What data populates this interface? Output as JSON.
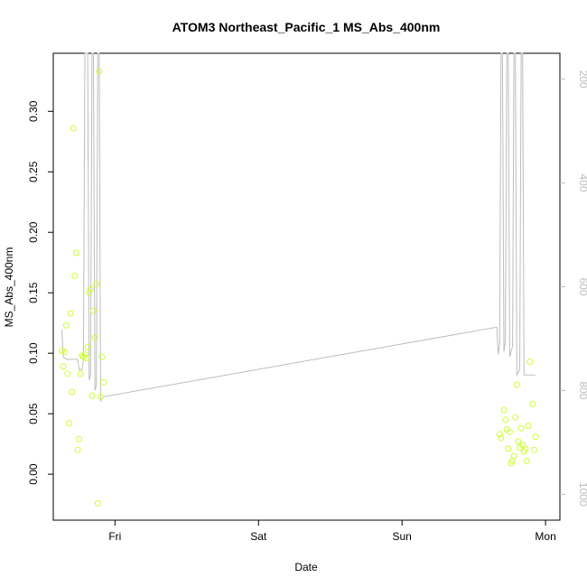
{
  "chart_data": {
    "type": "scatter",
    "title": "ATOM3 Northeast_Pacific_1 MS_Abs_400nm",
    "xlabel": "Date",
    "ylabel": "MS_Abs_400nm",
    "x_ticks": [
      "Fri",
      "Sat",
      "Sun",
      "Mon"
    ],
    "x_tick_days": [
      1,
      2,
      3,
      4
    ],
    "xlim_days": [
      0.57,
      4.1
    ],
    "ylim": [
      -0.038,
      0.348
    ],
    "y_ticks": [
      0.0,
      0.05,
      0.1,
      0.15,
      0.2,
      0.25,
      0.3
    ],
    "y_tick_labels": [
      "0.00",
      "0.05",
      "0.10",
      "0.15",
      "0.20",
      "0.25",
      "0.30"
    ],
    "right_axis": {
      "label": "",
      "ticks": [
        200,
        400,
        600,
        800,
        1000
      ],
      "range_top_to_bottom": [
        150,
        1050
      ],
      "color": "#bdbdbd"
    },
    "grid": false,
    "colors": {
      "points": "#ccff33",
      "line": "#bdbdbd",
      "axis": "#000000"
    },
    "series": [
      {
        "values_day_y": [
          [
            0.63,
            0.102
          ],
          [
            0.64,
            0.089
          ],
          [
            0.65,
            0.101
          ],
          [
            0.66,
            0.123
          ],
          [
            0.67,
            0.083
          ],
          [
            0.68,
            0.042
          ],
          [
            0.69,
            0.133
          ],
          [
            0.7,
            0.068
          ],
          [
            0.71,
            0.286
          ],
          [
            0.72,
            0.164
          ],
          [
            0.73,
            0.183
          ],
          [
            0.74,
            0.02
          ],
          [
            0.75,
            0.029
          ],
          [
            0.76,
            0.083
          ],
          [
            0.77,
            0.098
          ],
          [
            0.78,
            0.097
          ],
          [
            0.79,
            0.099
          ],
          [
            0.8,
            0.096
          ],
          [
            0.81,
            0.105
          ],
          [
            0.82,
            0.15
          ],
          [
            0.83,
            0.153
          ],
          [
            0.84,
            0.065
          ],
          [
            0.85,
            0.135
          ],
          [
            0.86,
            0.113
          ],
          [
            0.87,
            0.157
          ],
          [
            0.88,
            -0.024
          ],
          [
            0.89,
            0.333
          ],
          [
            0.9,
            0.064
          ],
          [
            0.91,
            0.097
          ],
          [
            0.92,
            0.076
          ],
          [
            3.68,
            0.033
          ],
          [
            3.69,
            0.03
          ],
          [
            3.71,
            0.053
          ],
          [
            3.72,
            0.045
          ],
          [
            3.73,
            0.037
          ],
          [
            3.74,
            0.021
          ],
          [
            3.75,
            0.035
          ],
          [
            3.76,
            0.009
          ],
          [
            3.77,
            0.011
          ],
          [
            3.78,
            0.015
          ],
          [
            3.79,
            0.047
          ],
          [
            3.8,
            0.074
          ],
          [
            3.81,
            0.027
          ],
          [
            3.82,
            0.022
          ],
          [
            3.83,
            0.038
          ],
          [
            3.84,
            0.024
          ],
          [
            3.85,
            0.019
          ],
          [
            3.86,
            0.021
          ],
          [
            3.87,
            0.011
          ],
          [
            3.88,
            0.04
          ],
          [
            3.89,
            0.093
          ],
          [
            3.91,
            0.058
          ],
          [
            3.92,
            0.02
          ],
          [
            3.93,
            0.031
          ]
        ]
      }
    ],
    "depth_line_day_value": [
      [
        0.63,
        683
      ],
      [
        0.64,
        735
      ],
      [
        0.66,
        740
      ],
      [
        0.74,
        740
      ],
      [
        0.75,
        760
      ],
      [
        0.77,
        760
      ],
      [
        0.78,
        740
      ],
      [
        0.79,
        150
      ],
      [
        0.8,
        150
      ],
      [
        0.81,
        150
      ],
      [
        0.82,
        780
      ],
      [
        0.83,
        770
      ],
      [
        0.84,
        150
      ],
      [
        0.85,
        150
      ],
      [
        0.86,
        800
      ],
      [
        0.87,
        790
      ],
      [
        0.88,
        150
      ],
      [
        0.89,
        150
      ],
      [
        0.9,
        820
      ],
      [
        0.92,
        812
      ],
      [
        3.66,
        678
      ],
      [
        3.67,
        730
      ],
      [
        3.68,
        710
      ],
      [
        3.69,
        150
      ],
      [
        3.7,
        150
      ],
      [
        3.71,
        725
      ],
      [
        3.72,
        705
      ],
      [
        3.73,
        150
      ],
      [
        3.74,
        150
      ],
      [
        3.75,
        735
      ],
      [
        3.77,
        715
      ],
      [
        3.78,
        150
      ],
      [
        3.79,
        150
      ],
      [
        3.8,
        770
      ],
      [
        3.82,
        760
      ],
      [
        3.83,
        150
      ],
      [
        3.84,
        150
      ],
      [
        3.85,
        770
      ],
      [
        3.93,
        770
      ]
    ]
  }
}
